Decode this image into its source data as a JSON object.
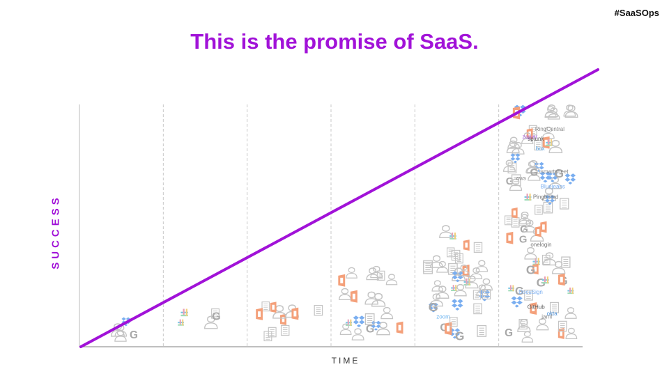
{
  "header": {
    "hashtag": "#SaaSOps"
  },
  "title": "This is the promise of SaaS.",
  "axes": {
    "y_label": "SUCCESS",
    "x_label": "TIME"
  },
  "colors": {
    "accent": "#a112d8",
    "icons": "#c4c4c4",
    "axis": "#999999",
    "divider": "#c8c8c8"
  },
  "diagram": {
    "type": "line",
    "columns": 6,
    "trend": {
      "from": [
        0,
        0
      ],
      "to": [
        1,
        1
      ]
    },
    "app_labels": [
      "box",
      "zoom",
      "okta",
      "jamf",
      "GitHub",
      "Pingboard",
      "splunk",
      "DocuSign",
      "onelogin",
      "smartsheet",
      "Bluejeans",
      "aws",
      "zapier",
      "RingCentral"
    ],
    "icon_names": [
      "person-icon",
      "document-icon",
      "google-g-icon",
      "office-icon",
      "dropbox-icon",
      "slack-icon"
    ]
  }
}
